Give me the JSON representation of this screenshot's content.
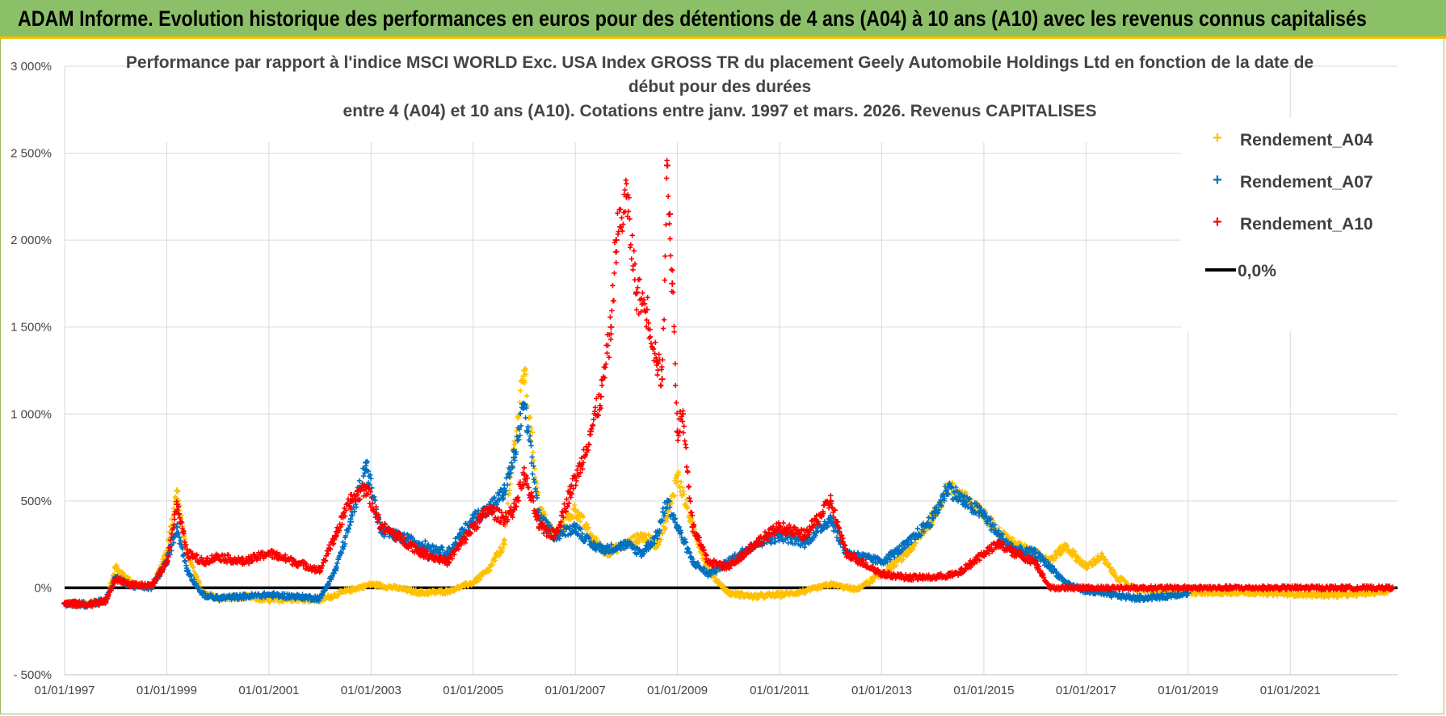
{
  "banner": {
    "title": "ADAM Informe. Evolution historique des performances en euros pour des détentions de 4 ans (A04) à 10 ans (A10) avec les revenus connus capitalisés"
  },
  "colors": {
    "banner_bg": "#8cc068",
    "banner_border": "#f0c000",
    "a04": "#ffc000",
    "a07": "#0070c0",
    "a10": "#ff0000",
    "zero_line": "#000000",
    "grid": "#d9d9d9"
  },
  "chart_data": {
    "type": "scatter",
    "title": [
      "Performance par rapport à l'indice MSCI WORLD Exc. USA Index GROSS TR  du placement Geely Automobile Holdings Ltd en fonction de la date de",
      "début pour des durées",
      "entre 4 (A04) et 10 ans (A10). Cotations entre janv. 1997 et mars. 2026. Revenus CAPITALISES"
    ],
    "xlim": [
      1997.0,
      2023.1
    ],
    "ylim": [
      -500,
      3000
    ],
    "y_ticks": [
      -500,
      0,
      500,
      1000,
      1500,
      2000,
      2500,
      3000
    ],
    "y_tick_labels": [
      "- 500%",
      "0%",
      "500%",
      "1 000%",
      "1 500%",
      "2 000%",
      "2 500%",
      "3 000%"
    ],
    "x_ticks": [
      1997,
      1999,
      2001,
      2003,
      2005,
      2007,
      2009,
      2011,
      2013,
      2015,
      2017,
      2019,
      2021
    ],
    "x_tick_labels": [
      "01/01/1997",
      "01/01/1999",
      "01/01/2001",
      "01/01/2003",
      "01/01/2005",
      "01/01/2007",
      "01/01/2009",
      "01/01/2011",
      "01/01/2013",
      "01/01/2015",
      "01/01/2017",
      "01/01/2019",
      "01/01/2021"
    ],
    "grid": true,
    "legend_position": "top-right",
    "legend": [
      "Rendement_A04",
      "Rendement_A07",
      "Rendement_A10",
      "0,0%"
    ],
    "series": [
      {
        "name": "Rendement_A04",
        "x": [
          1997.0,
          1997.4,
          1997.8,
          1998.0,
          1998.3,
          1998.7,
          1999.0,
          1999.2,
          1999.4,
          1999.7,
          2000.0,
          2000.5,
          2001.0,
          2001.5,
          2002.0,
          2002.5,
          2003.0,
          2003.5,
          2004.0,
          2004.5,
          2005.0,
          2005.3,
          2005.6,
          2005.8,
          2006.0,
          2006.3,
          2006.6,
          2007.0,
          2007.3,
          2007.6,
          2008.0,
          2008.3,
          2008.6,
          2008.8,
          2009.0,
          2009.3,
          2009.6,
          2010.0,
          2010.5,
          2011.0,
          2011.5,
          2012.0,
          2012.5,
          2013.0,
          2013.5,
          2014.0,
          2014.3,
          2014.6,
          2015.0,
          2015.3,
          2015.6,
          2016.0,
          2016.3,
          2016.6,
          2017.0,
          2017.3,
          2017.6,
          2018.0,
          2018.5,
          2019.0,
          2019.5,
          2020.0,
          2020.5,
          2021.0,
          2021.5,
          2022.0,
          2022.5,
          2022.9
        ],
        "y": [
          -90,
          -95,
          -80,
          120,
          30,
          0,
          200,
          560,
          200,
          -30,
          -60,
          -50,
          -70,
          -60,
          -70,
          -20,
          20,
          0,
          -30,
          -20,
          30,
          100,
          250,
          800,
          1250,
          450,
          300,
          450,
          300,
          200,
          250,
          300,
          250,
          400,
          650,
          350,
          100,
          -30,
          -50,
          -40,
          -20,
          20,
          -10,
          80,
          200,
          400,
          580,
          520,
          420,
          320,
          250,
          200,
          160,
          240,
          120,
          180,
          60,
          -10,
          -20,
          -25,
          -30,
          -25,
          -30,
          -35,
          -40,
          -40,
          -30,
          -20
        ]
      },
      {
        "name": "Rendement_A07",
        "x": [
          1997.0,
          1997.4,
          1997.8,
          1998.0,
          1998.3,
          1998.7,
          1999.0,
          1999.2,
          1999.4,
          1999.7,
          2000.0,
          2000.5,
          2001.0,
          2001.5,
          2002.0,
          2002.3,
          2002.6,
          2002.9,
          2003.2,
          2003.5,
          2004.0,
          2004.5,
          2005.0,
          2005.3,
          2005.6,
          2005.8,
          2006.0,
          2006.3,
          2006.6,
          2007.0,
          2007.3,
          2007.6,
          2008.0,
          2008.3,
          2008.6,
          2008.8,
          2009.0,
          2009.3,
          2009.6,
          2010.0,
          2010.5,
          2011.0,
          2011.5,
          2012.0,
          2012.3,
          2012.6,
          2013.0,
          2013.5,
          2014.0,
          2014.3,
          2014.6,
          2015.0,
          2015.3,
          2015.6,
          2016.0,
          2016.3,
          2016.6,
          2017.0,
          2017.5,
          2018.0,
          2018.5,
          2019.0
        ],
        "y": [
          -90,
          -95,
          -70,
          60,
          10,
          0,
          150,
          350,
          100,
          -40,
          -60,
          -50,
          -40,
          -50,
          -60,
          100,
          380,
          720,
          320,
          300,
          250,
          200,
          400,
          450,
          550,
          750,
          1050,
          400,
          300,
          350,
          250,
          220,
          250,
          200,
          300,
          500,
          350,
          150,
          80,
          150,
          250,
          300,
          260,
          400,
          200,
          180,
          150,
          250,
          400,
          580,
          500,
          420,
          300,
          220,
          200,
          120,
          30,
          -20,
          -40,
          -60,
          -50,
          -30
        ]
      },
      {
        "name": "Rendement_A10",
        "x": [
          1997.0,
          1997.4,
          1997.8,
          1998.0,
          1998.3,
          1998.7,
          1999.0,
          1999.2,
          1999.4,
          1999.7,
          2000.0,
          2000.5,
          2001.0,
          2001.5,
          2002.0,
          2002.3,
          2002.6,
          2002.9,
          2003.2,
          2003.5,
          2004.0,
          2004.5,
          2005.0,
          2005.3,
          2005.6,
          2005.8,
          2006.0,
          2006.3,
          2006.6,
          2006.9,
          2007.1,
          2007.3,
          2007.5,
          2007.7,
          2007.8,
          2008.0,
          2008.2,
          2008.4,
          2008.6,
          2008.7,
          2008.8,
          2008.85,
          2008.9,
          2009.0,
          2009.1,
          2009.3,
          2009.6,
          2010.0,
          2010.5,
          2011.0,
          2011.5,
          2012.0,
          2012.3,
          2012.6,
          2013.0,
          2013.5,
          2014.0,
          2014.5,
          2015.0,
          2015.3,
          2015.6,
          2016.0,
          2016.3,
          2016.6,
          2017.0,
          2018.0,
          2019.0,
          2020.0,
          2021.0,
          2022.0,
          2023.0
        ],
        "y": [
          -90,
          -95,
          -80,
          50,
          20,
          10,
          150,
          480,
          200,
          150,
          180,
          150,
          200,
          150,
          100,
          300,
          500,
          580,
          350,
          300,
          200,
          150,
          350,
          450,
          400,
          450,
          650,
          350,
          300,
          550,
          700,
          900,
          1100,
          1500,
          2000,
          2250,
          1700,
          1600,
          1300,
          1200,
          2430,
          2150,
          1750,
          900,
          1000,
          350,
          150,
          120,
          250,
          350,
          300,
          500,
          200,
          150,
          80,
          60,
          60,
          80,
          200,
          250,
          200,
          150,
          0,
          0,
          0,
          0,
          0,
          0,
          0,
          0,
          0
        ]
      },
      {
        "name": "0,0%",
        "x": [
          1997.0,
          2023.1
        ],
        "y": [
          0,
          0
        ]
      }
    ]
  }
}
